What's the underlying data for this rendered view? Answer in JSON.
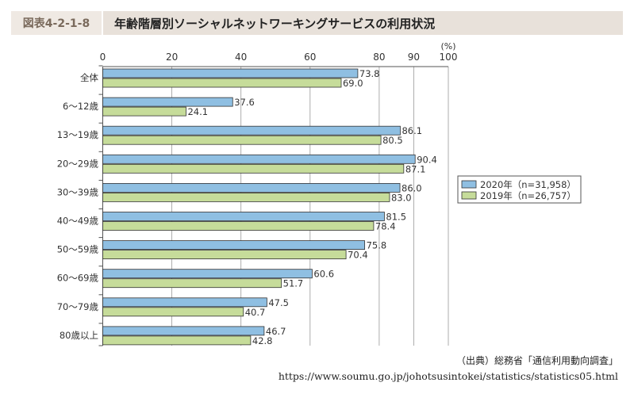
{
  "header": {
    "figure_label": "図表4-2-1-8",
    "title": "年齢階層別ソーシャルネットワーキングサービスの利用状況"
  },
  "source": {
    "citation": "（出典）総務省「通信利用動向調査」",
    "url": "https://www.soumu.go.jp/johotsusintokei/statistics/statistics05.html"
  },
  "chart_data": {
    "type": "bar",
    "orientation": "horizontal",
    "title": "年齢階層別ソーシャルネットワーキングサービスの利用状況",
    "unit": "(%)",
    "xlim": [
      0,
      100
    ],
    "ticks": [
      0,
      20,
      40,
      60,
      80,
      90,
      100
    ],
    "categories": [
      "全体",
      "6～12歳",
      "13～19歳",
      "20～29歳",
      "30～39歳",
      "40～49歳",
      "50～59歳",
      "60～69歳",
      "70～79歳",
      "80歳以上"
    ],
    "series": [
      {
        "name": "2020年（n=31,958）",
        "color": "#8fbfe2",
        "values": [
          73.8,
          37.6,
          86.1,
          90.4,
          86.0,
          81.5,
          75.8,
          60.6,
          47.5,
          46.7
        ]
      },
      {
        "name": "2019年（n=26,757）",
        "color": "#c6dc9a",
        "values": [
          69.0,
          24.1,
          80.5,
          87.1,
          83.0,
          78.4,
          70.4,
          51.7,
          40.7,
          42.8
        ]
      }
    ],
    "legend_position": "right",
    "grid": true
  }
}
